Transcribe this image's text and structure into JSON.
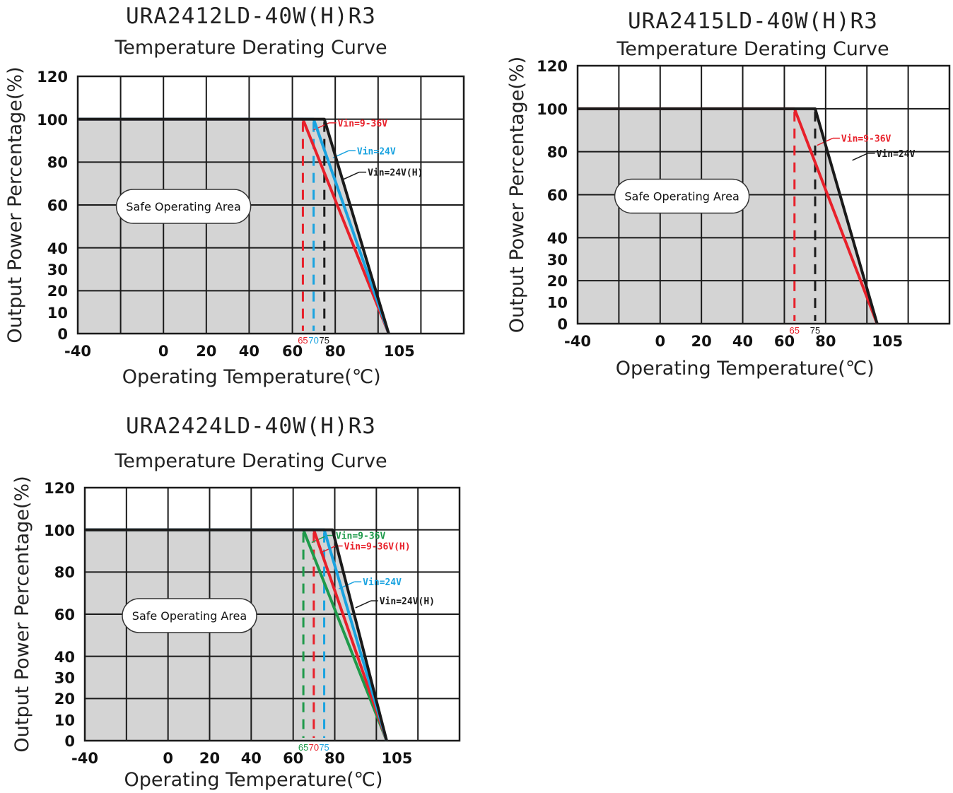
{
  "colors": {
    "black": "#1a1a1a",
    "red": "#e8202a",
    "blue": "#1aa3e0",
    "green": "#1e9a4a",
    "safe_area_fill": "#d4d4d4",
    "grid": "#1a1a1a"
  },
  "chart_data": [
    {
      "type": "line",
      "model_title": "URA2412LD-40W(H)R3",
      "title": "Temperature Derating Curve",
      "xlabel": "Operating Temperature(℃)",
      "ylabel": "Output Power Percentage(%)",
      "x_ticks": [
        "-40",
        "0",
        "20",
        "40",
        "60",
        "80",
        "105"
      ],
      "y_ticks": [
        "0",
        "10",
        "20",
        "30",
        "40",
        "60",
        "80",
        "100",
        "120"
      ],
      "xlim": [
        -40,
        140
      ],
      "ylim": [
        0,
        120
      ],
      "grid": true,
      "area_label": "Safe Operating Area",
      "marker_labels": [
        {
          "text": "65",
          "x": 65,
          "color": "red"
        },
        {
          "text": "70",
          "x": 70,
          "color": "blue"
        },
        {
          "text": "75",
          "x": 75,
          "color": "black"
        }
      ],
      "series": [
        {
          "name": "Vin=9-36V",
          "color": "red",
          "x": [
            -40,
            65,
            105
          ],
          "y": [
            100,
            100,
            0
          ],
          "legend_anchor_x": 70,
          "legend_anchor_y": 95
        },
        {
          "name": "Vin=24V",
          "color": "blue",
          "x": [
            -40,
            70,
            105
          ],
          "y": [
            100,
            100,
            0
          ],
          "legend_anchor_x": 79,
          "legend_anchor_y": 82
        },
        {
          "name": "Vin=24V(H)",
          "color": "black",
          "x": [
            -40,
            75,
            105
          ],
          "y": [
            100,
            100,
            0
          ],
          "legend_anchor_x": 84,
          "legend_anchor_y": 72
        }
      ]
    },
    {
      "type": "line",
      "model_title": "URA2415LD-40W(H)R3",
      "title": "Temperature Derating Curve",
      "xlabel": "Operating Temperature(℃)",
      "ylabel": "Output Power Percentage(%)",
      "x_ticks": [
        "-40",
        "0",
        "20",
        "40",
        "60",
        "80",
        "105"
      ],
      "y_ticks": [
        "0",
        "10",
        "20",
        "30",
        "40",
        "60",
        "80",
        "100",
        "120"
      ],
      "xlim": [
        -40,
        140
      ],
      "ylim": [
        0,
        120
      ],
      "grid": true,
      "area_label": "Safe Operating Area",
      "marker_labels": [
        {
          "text": "65",
          "x": 65,
          "color": "red"
        },
        {
          "text": "75",
          "x": 75,
          "color": "black"
        }
      ],
      "series": [
        {
          "name": "Vin=9-36V",
          "color": "red",
          "x": [
            -40,
            65,
            105
          ],
          "y": [
            100,
            100,
            0
          ],
          "legend_anchor_x": 76,
          "legend_anchor_y": 83
        },
        {
          "name": "Vin=24V",
          "color": "black",
          "x": [
            -40,
            75,
            105
          ],
          "y": [
            100,
            100,
            0
          ],
          "legend_anchor_x": 93,
          "legend_anchor_y": 76
        }
      ]
    },
    {
      "type": "line",
      "model_title": "URA2424LD-40W(H)R3",
      "title": "Temperature Derating Curve",
      "xlabel": "Operating Temperature(℃)",
      "ylabel": "Output Power Percentage(%)",
      "x_ticks": [
        "-40",
        "0",
        "20",
        "40",
        "60",
        "80",
        "105"
      ],
      "y_ticks": [
        "0",
        "10",
        "20",
        "30",
        "40",
        "60",
        "80",
        "100",
        "120"
      ],
      "xlim": [
        -40,
        140
      ],
      "ylim": [
        0,
        120
      ],
      "grid": true,
      "area_label": "Safe Operating Area",
      "marker_labels": [
        {
          "text": "65",
          "x": 65,
          "color": "green"
        },
        {
          "text": "70",
          "x": 70,
          "color": "red"
        },
        {
          "text": "75",
          "x": 75,
          "color": "blue"
        }
      ],
      "series": [
        {
          "name": "Vin=9-36V",
          "color": "green",
          "x": [
            -40,
            65,
            105
          ],
          "y": [
            100,
            100,
            0
          ],
          "legend_anchor_x": 69,
          "legend_anchor_y": 94
        },
        {
          "name": "Vin=9-36V(H)",
          "color": "red",
          "x": [
            -40,
            70,
            105
          ],
          "y": [
            100,
            100,
            0
          ],
          "legend_anchor_x": 73,
          "legend_anchor_y": 89
        },
        {
          "name": "Vin=24V",
          "color": "blue",
          "x": [
            -40,
            75,
            105
          ],
          "y": [
            100,
            100,
            0
          ],
          "legend_anchor_x": 82,
          "legend_anchor_y": 72
        },
        {
          "name": "Vin=24V(H)",
          "color": "black",
          "x": [
            -40,
            79,
            105
          ],
          "y": [
            100,
            100,
            0
          ],
          "legend_anchor_x": 90,
          "legend_anchor_y": 63
        }
      ]
    }
  ]
}
